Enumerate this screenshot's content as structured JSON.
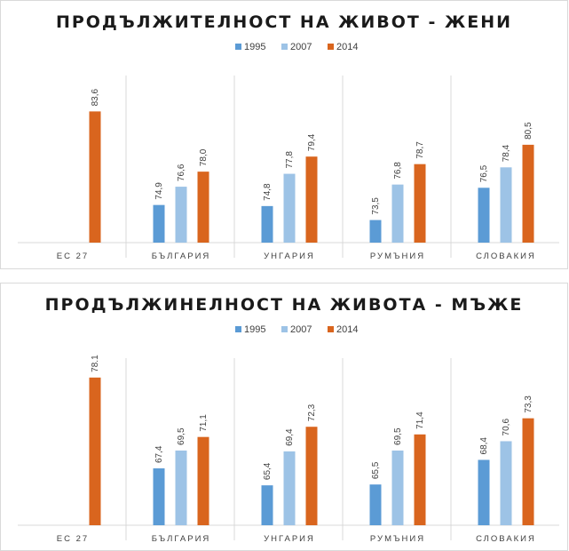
{
  "chart_data": [
    {
      "type": "bar",
      "title": "ПРОДЪЛЖИТЕЛНОСТ НА ЖИВОТ - ЖЕНИ",
      "categories": [
        "ЕС 27",
        "БЪЛГАРИЯ",
        "УНГАРИЯ",
        "РУМЪНИЯ",
        "СЛОВАКИЯ"
      ],
      "series": [
        {
          "name": "1995",
          "color": "#5b9bd5",
          "values": [
            null,
            74.9,
            74.8,
            73.5,
            76.5
          ],
          "labels": [
            "",
            "74,9",
            "74,8",
            "73,5",
            "76,5"
          ]
        },
        {
          "name": "2007",
          "color": "#9dc3e6",
          "values": [
            null,
            76.6,
            77.8,
            76.8,
            78.4
          ],
          "labels": [
            "",
            "76,6",
            "77,8",
            "76,8",
            "78,4"
          ]
        },
        {
          "name": "2014",
          "color": "#d9651e",
          "values": [
            83.6,
            78.0,
            79.4,
            78.7,
            80.5
          ],
          "labels": [
            "83,6",
            "78,0",
            "79,4",
            "78,7",
            "80,5"
          ]
        }
      ],
      "ylim": [
        71.4,
        85.2
      ],
      "legend": "top-center",
      "grid": false
    },
    {
      "type": "bar",
      "title": "ПРОДЪЛЖИНЕЛНОСТ НА ЖИВОТА - МЪЖЕ",
      "categories": [
        "ЕС 27",
        "БЪЛГАРИЯ",
        "УНГАРИЯ",
        "РУМЪНИЯ",
        "СЛОВАКИЯ"
      ],
      "series": [
        {
          "name": "1995",
          "color": "#5b9bd5",
          "values": [
            null,
            67.4,
            65.4,
            65.5,
            68.4
          ],
          "labels": [
            "",
            "67,4",
            "65,4",
            "65,5",
            "68,4"
          ]
        },
        {
          "name": "2007",
          "color": "#9dc3e6",
          "values": [
            null,
            69.5,
            69.4,
            69.5,
            70.6
          ],
          "labels": [
            "",
            "69,5",
            "69,4",
            "69,5",
            "70,6"
          ]
        },
        {
          "name": "2014",
          "color": "#d9651e",
          "values": [
            78.1,
            71.1,
            72.3,
            71.4,
            73.3
          ],
          "labels": [
            "78.1",
            "71,1",
            "72,3",
            "71,4",
            "73,3"
          ]
        }
      ],
      "ylim": [
        60.7,
        80.1
      ],
      "legend": "top-center",
      "grid": false
    }
  ]
}
